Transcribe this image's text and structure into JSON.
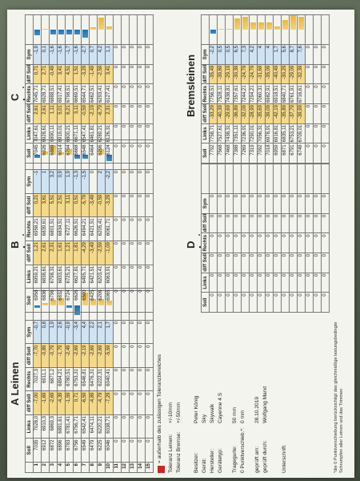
{
  "colors": {
    "sheet": "#f4f4ef",
    "blue_bar": "#1f6fb0",
    "yellow_bar": "#e9b73a",
    "red_legend": "#c42a22"
  },
  "headers": [
    "Soll",
    "Links",
    "diff Soll",
    "Rechts",
    "diff Soll",
    "Sym"
  ],
  "row_numbers": [
    "1",
    "2",
    "3",
    "4",
    "5",
    "6",
    "7",
    "8",
    "9",
    "10",
    "11",
    "12",
    "13",
    "14",
    "15"
  ],
  "a_leinen": {
    "title": "A Leinen",
    "rows": [
      [
        "7035",
        "7028,0",
        "-7,00",
        "7027,3",
        "-7,70",
        "-0,7"
      ],
      [
        "6912",
        "6910,3",
        "-1,69",
        "6911,1",
        "-0,89",
        "0,8"
      ],
      [
        "6872",
        "6869,3",
        "-2,69",
        "6871,2",
        "-0,79",
        "1,9"
      ],
      [
        "6896",
        "6891,61",
        "-4,39",
        "6894,21",
        "-1,79",
        "2,6"
      ],
      [
        "6783",
        "6781,41",
        "-1,59",
        "6780,51",
        "-2,49",
        "-0,9"
      ],
      [
        "6756",
        "6756,71",
        "0,71",
        "6753,31",
        "-2,69",
        "-3,4"
      ],
      [
        "6549",
        "6542,41",
        "-6,59",
        "6546,81",
        "-2,19",
        "4,4"
      ],
      [
        "6479",
        "6474,11",
        "-4,89",
        "6476,31",
        "-2,69",
        "2,2"
      ],
      [
        "6225",
        "6220,21",
        "-4,79",
        "6222,31",
        "-2,69",
        "2,1"
      ],
      [
        "6046",
        "6038,71",
        "-7,29",
        "6040,41",
        "-5,59",
        "1,7"
      ],
      [
        "0",
        "0",
        "0",
        "0",
        "0",
        "0"
      ],
      [
        "0",
        "0",
        "0",
        "0",
        "0",
        "0"
      ],
      [
        "0",
        "0",
        "0",
        "0",
        "0",
        "0"
      ],
      [
        "0",
        "0",
        "0",
        "0",
        "0",
        "0"
      ],
      [
        "0",
        "0",
        "0",
        "0",
        "0",
        "0"
      ]
    ]
  },
  "b_leinen": {
    "title": "B Leinen",
    "rows": [
      [
        "6958",
        "6959,21",
        "1,21",
        "6958,21",
        "0,21",
        "-1"
      ],
      [
        "6836",
        "6838,61",
        "2,61",
        "6839,61",
        "3,61",
        "1"
      ],
      [
        "6796",
        "6798,31",
        "2,31",
        "6801,51",
        "5,51",
        "3,2"
      ],
      [
        "6832",
        "6833,61",
        "1,61",
        "6834,51",
        "2,51",
        "0,9"
      ],
      [
        "6724",
        "6725,21",
        "1,21",
        "6727,11",
        "3,11",
        "1,9"
      ],
      [
        "6626",
        "6627,81",
        "1,81",
        "6626,51",
        "0,51",
        "-1,3"
      ],
      [
        "6500",
        "6495,71",
        "-4,29",
        "6494,21",
        "-5,79",
        "-1,5"
      ],
      [
        "6425",
        "6421,51",
        "-3,49",
        "6421,51",
        "-3,49",
        "0"
      ],
      [
        "6206",
        "6203,41",
        "-2,59",
        "6205,41",
        "-0,59",
        "2"
      ],
      [
        "6065",
        "6063,91",
        "-1,09",
        "6061,71",
        "-3,29",
        "-2,2"
      ],
      [
        "0",
        "0",
        "0",
        "0",
        "0",
        "0"
      ],
      [
        "0",
        "0",
        "0",
        "0",
        "0",
        "0"
      ],
      [
        "0",
        "0",
        "0",
        "0",
        "0",
        "0"
      ],
      [
        "0",
        "0",
        "0",
        "0",
        "0",
        "0"
      ],
      [
        "0",
        "0",
        "0",
        "0",
        "0",
        "0"
      ]
    ]
  },
  "c_leinen": {
    "title": "C Leinen",
    "rows": [
      [
        "7045",
        "7047,61",
        "2,61",
        "7045,71",
        "0,71",
        "-1,9"
      ],
      [
        "6926",
        "6928,61",
        "2,61",
        "6928,71",
        "2,71",
        "0,1"
      ],
      [
        "6889",
        "6890,11",
        "1,11",
        "6888,51",
        "-0,49",
        "-1,6"
      ],
      [
        "6914",
        "6919,01",
        "5,01",
        "6917,41",
        "3,41",
        "-1,6"
      ],
      [
        "6794",
        "6800,21",
        "6,21",
        "6798,51",
        "4,51",
        "-1,7"
      ],
      [
        "6668",
        "6671,11",
        "3,11",
        "6669,51",
        "1,51",
        "-1,6"
      ],
      [
        "6548",
        "6547,41",
        "-0,59",
        "6544,71",
        "-3,29",
        "-2,7"
      ],
      [
        "6464",
        "6461,81",
        "-2,19",
        "6462,51",
        "-1,49",
        "0,7"
      ],
      [
        "6296",
        "6289,21",
        "-6,79",
        "6293,41",
        "-2,59",
        "4,2"
      ],
      [
        "6124",
        "6126,31",
        "2,31",
        "6127,41",
        "3,41",
        "1,1"
      ],
      [
        "0",
        "0",
        "0",
        "0",
        "0",
        "0"
      ],
      [
        "0",
        "0",
        "0",
        "0",
        "0",
        "0"
      ],
      [
        "0",
        "0",
        "0",
        "0",
        "0",
        "0"
      ],
      [
        "0",
        "0",
        "0",
        "0",
        "0",
        "0"
      ],
      [
        "0",
        "0",
        "0",
        "0",
        "0",
        "0"
      ]
    ]
  },
  "d_leinen": {
    "title": "D Leinen",
    "rows": [
      [
        "0",
        "0",
        "0",
        "0",
        "0",
        "0"
      ],
      [
        "0",
        "0",
        "0",
        "0",
        "0",
        "0"
      ],
      [
        "0",
        "0",
        "0",
        "0",
        "0",
        "0"
      ],
      [
        "0",
        "0",
        "0",
        "0",
        "0",
        "0"
      ],
      [
        "0",
        "0",
        "0",
        "0",
        "0",
        "0"
      ],
      [
        "0",
        "0",
        "0",
        "0",
        "0",
        "0"
      ],
      [
        "0",
        "0",
        "0",
        "0",
        "0",
        "0"
      ],
      [
        "0",
        "0",
        "0",
        "0",
        "0",
        "0"
      ],
      [
        "0",
        "0",
        "0",
        "0",
        "0",
        "0"
      ],
      [
        "0",
        "0",
        "0",
        "0",
        "0",
        "0"
      ],
      [
        "0",
        "0",
        "0",
        "0",
        "0",
        "0"
      ],
      [
        "0",
        "0",
        "0",
        "0",
        "0",
        "0"
      ],
      [
        "0",
        "0",
        "0",
        "0",
        "0",
        "0"
      ],
      [
        "0",
        "0",
        "0",
        "0",
        "0",
        "0"
      ],
      [
        "0",
        "0",
        "0",
        "0",
        "0",
        "0"
      ]
    ]
  },
  "bremsleinen": {
    "title": "Bremsleinen",
    "rows": [
      [
        "7792",
        "7758,71",
        "-33,29",
        "7756,51",
        "-35,49",
        "-2,2"
      ],
      [
        "7568",
        "7527,61",
        "-40,39",
        "7528,11",
        "-39,89",
        "0,5"
      ],
      [
        "7468",
        "7438,31",
        "-29,69",
        "7438,81",
        "-29,19",
        "0,5"
      ],
      [
        "7388",
        "7351,11",
        "-36,89",
        "7357,61",
        "-30,39",
        "6,5"
      ],
      [
        "7269",
        "7236,91",
        "-32,09",
        "7244,21",
        "-24,79",
        "7,3"
      ],
      [
        "7319",
        "7290,01",
        "-28,99",
        "7294,21",
        "-24,79",
        "4,2"
      ],
      [
        "7092",
        "7056,31",
        "-35,69",
        "7060,31",
        "-31,69",
        "4"
      ],
      [
        "7018",
        "6978,91",
        "-39,09",
        "6982,91",
        "-35,09",
        "4"
      ],
      [
        "6959",
        "6916,81",
        "-42,19",
        "6918,51",
        "-40,49",
        "1,7"
      ],
      [
        "6871",
        "6835,11",
        "-35,89",
        "6840,71",
        "-30,29",
        "5,6"
      ],
      [
        "6791",
        "6753,21",
        "-37,79",
        "6761,91",
        "-29,09",
        "8,7"
      ],
      [
        "6749",
        "6709,01",
        "-39,99",
        "6716,61",
        "-32,39",
        "7,6"
      ],
      [
        "0",
        "0",
        "0",
        "0",
        "0",
        "0"
      ],
      [
        "0",
        "0",
        "0",
        "0",
        "0",
        "0"
      ],
      [
        "0",
        "0",
        "0",
        "0",
        "0",
        "0"
      ]
    ]
  },
  "legend": {
    "text": "= außerhalb des zulässigen Toleranzbereiches"
  },
  "tolerances": [
    {
      "label": "Toleranz Leinen:",
      "value": "+/-10mm"
    },
    {
      "label": "Toleranz Bremse:",
      "value": "+/-50mm"
    }
  ],
  "details": [
    {
      "label": "Besitzer:",
      "value": "Peter König"
    },
    {
      "label": "Gerät:",
      "value": "Sky"
    },
    {
      "label": "Hersteller:",
      "value": "Skywalk"
    },
    {
      "label": "Gerätetyp:",
      "value": "Cayenne 4 S"
    }
  ],
  "measurements": [
    {
      "label": "Tragegurte:",
      "value": "50",
      "unit": "mm"
    },
    {
      "label": "0 Punktverschieb.*:",
      "value": "0",
      "unit": "mm"
    }
  ],
  "signatures": [
    {
      "label": "geprüft am:",
      "value": "28.10.2019"
    },
    {
      "label": "geprüft durch:",
      "value": "Wolfgang Marxt"
    }
  ],
  "signature_label": "Unterschrift:",
  "footnote": "*die 0 Punktverschiebung berücksichtigt das gleichmäßige lastungsbedingte Schrumpfen aller Leinen und das Trimmen"
}
